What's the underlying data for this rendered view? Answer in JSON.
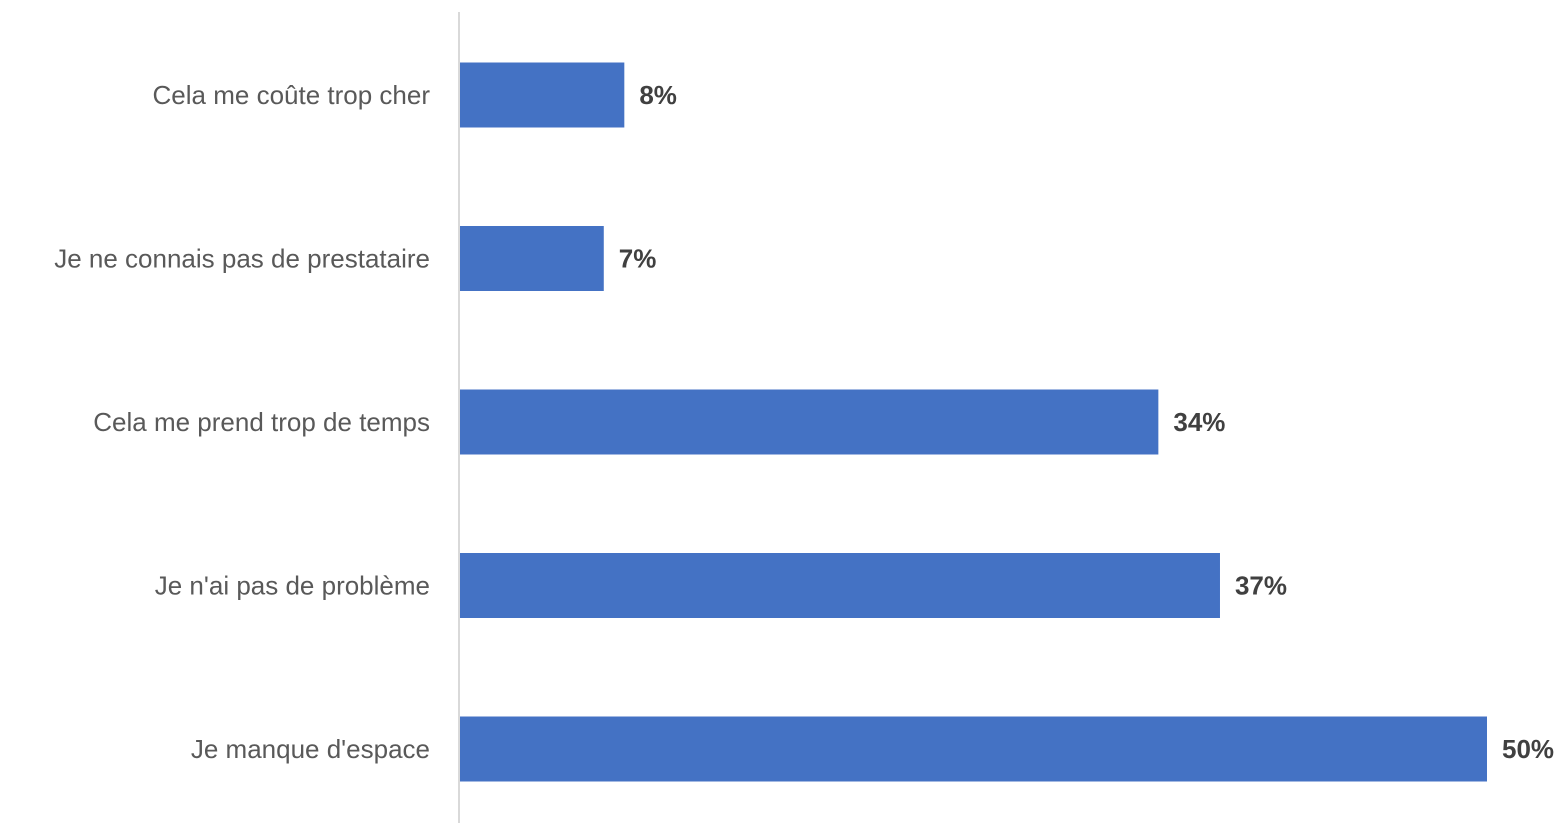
{
  "chart_data": {
    "type": "bar",
    "orientation": "horizontal",
    "title": "",
    "xlabel": "",
    "ylabel": "",
    "categories": [
      "Cela me coûte trop cher",
      "Je ne connais pas de prestataire",
      "Cela me prend trop de temps",
      "Je n'ai pas de problème",
      "Je manque d'espace"
    ],
    "values": [
      8,
      7,
      34,
      37,
      50
    ],
    "value_labels": [
      "8%",
      "7%",
      "34%",
      "37%",
      "50%"
    ],
    "unit": "%",
    "xlim": [
      0,
      50
    ],
    "grid": false,
    "legend": "none",
    "colors": {
      "bar": "#4472C4",
      "axis": "#D9D9D9",
      "category_text": "#595959",
      "value_text": "#404040"
    }
  }
}
